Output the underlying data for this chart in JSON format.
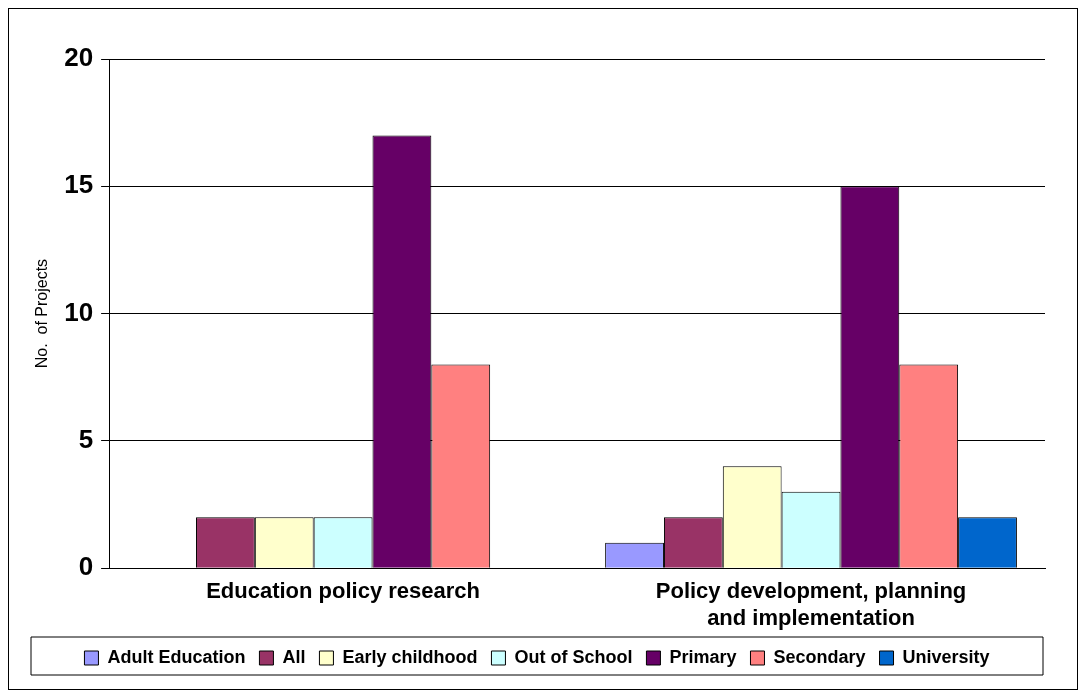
{
  "chart_data": {
    "type": "bar",
    "ylabel": "No.  of Projects",
    "categories": [
      "Education policy research",
      "Policy development, planning and implementation"
    ],
    "series": [
      {
        "name": "Adult Education",
        "color": "#9999ff",
        "values": [
          0,
          1
        ]
      },
      {
        "name": "All",
        "color": "#993366",
        "values": [
          2,
          2
        ]
      },
      {
        "name": "Early childhood",
        "color": "#ffffcc",
        "values": [
          2,
          4
        ]
      },
      {
        "name": "Out of School",
        "color": "#ccffff",
        "values": [
          2,
          3
        ]
      },
      {
        "name": "Primary",
        "color": "#660066",
        "values": [
          17,
          15
        ]
      },
      {
        "name": "Secondary",
        "color": "#ff8080",
        "values": [
          8,
          8
        ]
      },
      {
        "name": "University",
        "color": "#0066cc",
        "values": [
          0,
          2
        ]
      }
    ],
    "ylim": [
      0,
      20
    ],
    "yticks": [
      0,
      5,
      10,
      15,
      20
    ],
    "grid": "y",
    "legend": "bottom"
  }
}
